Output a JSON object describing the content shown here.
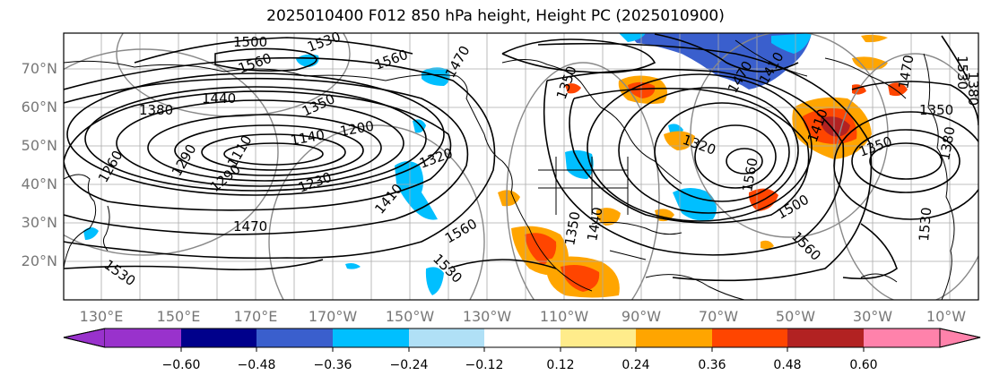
{
  "title": "2025010400 F012 850 hPa height, Height PC (2025010900)",
  "lat_labels": [
    "70°N",
    "60°N",
    "50°N",
    "40°N",
    "30°N",
    "20°N"
  ],
  "lon_labels": [
    "130°E",
    "150°E",
    "170°E",
    "170°W",
    "150°W",
    "130°W",
    "110°W",
    "90°W",
    "70°W",
    "50°W",
    "30°W",
    "10°W"
  ],
  "colorbar": {
    "colors": [
      "#9932cc",
      "#00008b",
      "#3a5fcd",
      "#00bfff",
      "#b0e0f6",
      "#ffffff",
      "#ffec8b",
      "#ffa500",
      "#ff4500",
      "#b22222",
      "#ff82ab"
    ],
    "labels": [
      "−0.60",
      "−0.48",
      "−0.36",
      "−0.24",
      "−0.12",
      "0.12",
      "0.24",
      "0.36",
      "0.48",
      "0.60"
    ]
  },
  "contour_labels": [
    "1500",
    "1530",
    "1560",
    "1560",
    "1470",
    "1440",
    "1380",
    "1350",
    "1140",
    "1200",
    "1110",
    "1290",
    "1230",
    "1320",
    "1410",
    "1470",
    "1530",
    "1560",
    "1530",
    "1260",
    "1290",
    "1350",
    "1410",
    "1470",
    "1500",
    "1560",
    "1350",
    "1380",
    "1470",
    "1530",
    "1440",
    "1320",
    "1410",
    "1350",
    "1560",
    "1350",
    "1380",
    "1530",
    "1170",
    "1230"
  ]
}
